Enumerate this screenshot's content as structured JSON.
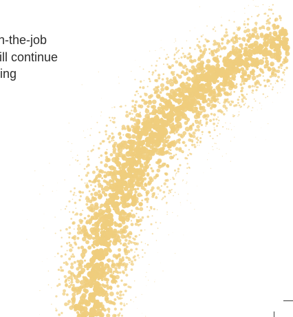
{
  "body_text": {
    "lines": [
      "n-the-job",
      "ill continue",
      "ing"
    ]
  },
  "decoration": {
    "graphic": "dot-arc-illustration",
    "dot_color": "#efcd7d"
  },
  "colors": {
    "text": "#2c2c2c",
    "background": "#ffffff",
    "accent": "#efcd7d"
  }
}
